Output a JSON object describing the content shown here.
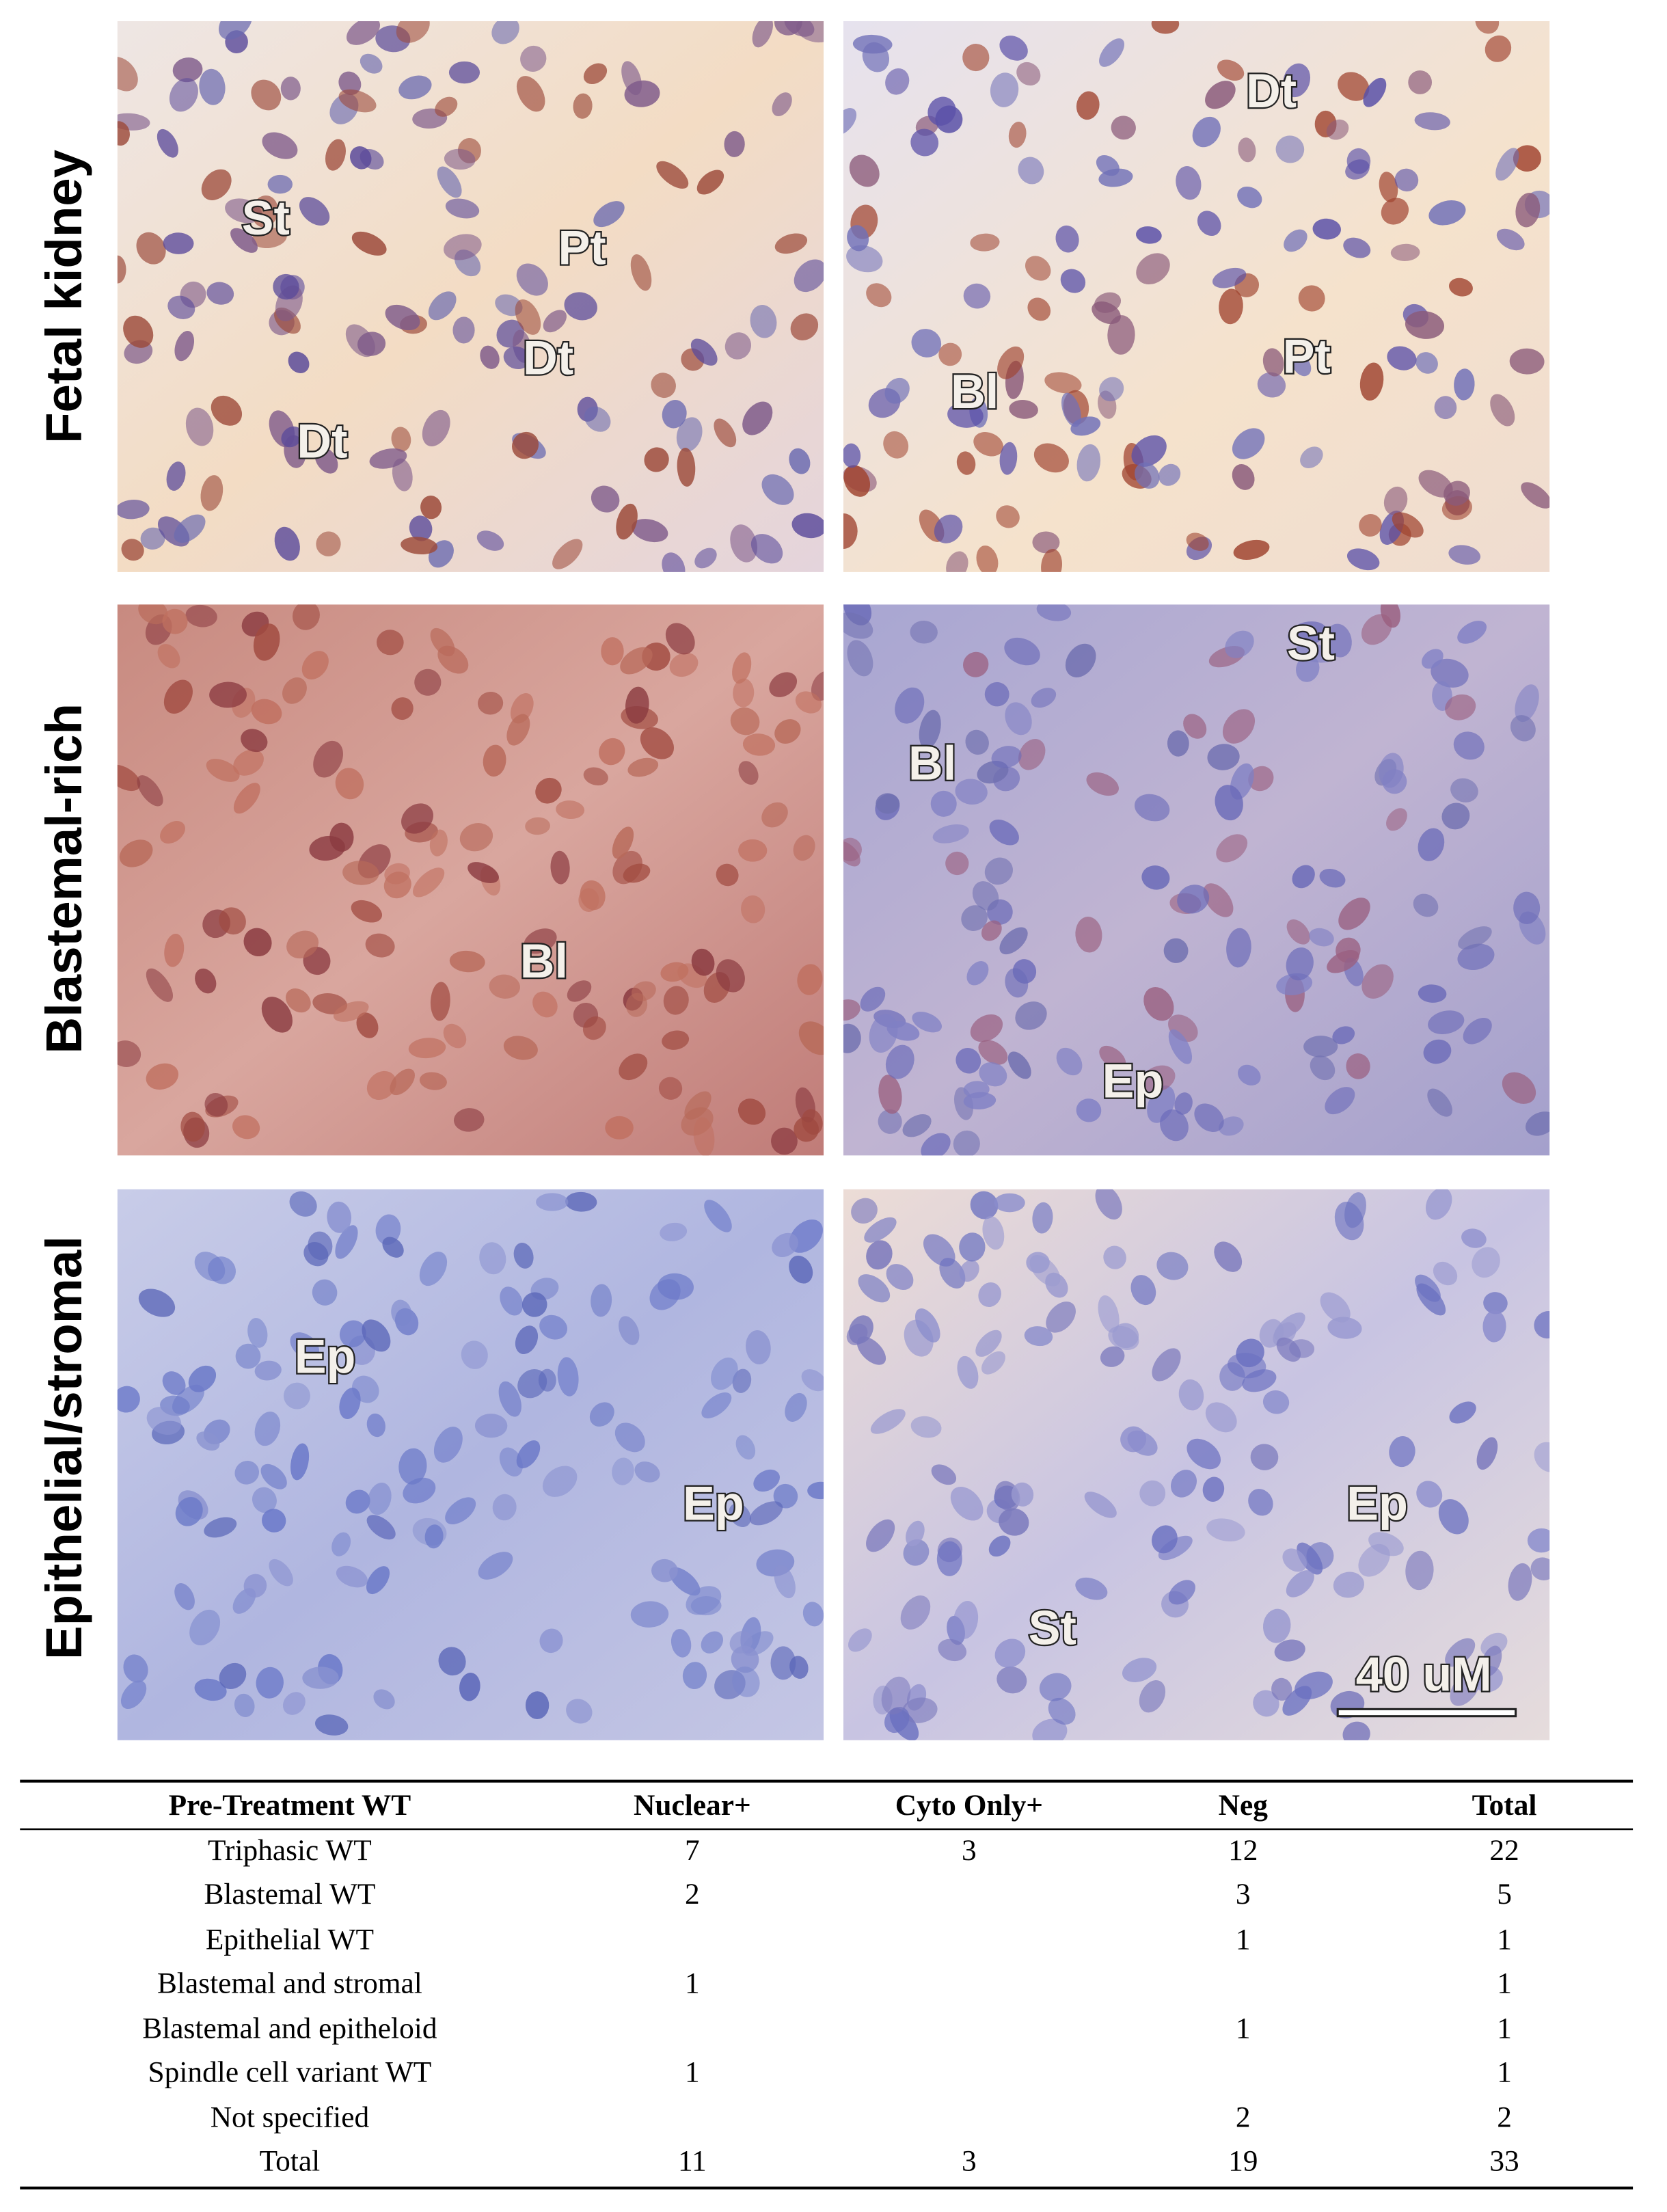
{
  "row_labels": [
    "Fetal kidney",
    "Blastemal-rich",
    "Epithelial/stromal"
  ],
  "panels": [
    {
      "labels": [
        "St",
        "Pt",
        "Dt",
        "Dt"
      ]
    },
    {
      "labels": [
        "Dt",
        "Bl",
        "Pt"
      ]
    },
    {
      "labels": [
        "Bl"
      ]
    },
    {
      "labels": [
        "St",
        "Bl",
        "Ep"
      ]
    },
    {
      "labels": [
        "Ep",
        "Ep"
      ]
    },
    {
      "labels": [
        "Ep",
        "St"
      ]
    }
  ],
  "scale_bar": "40 uM",
  "table": {
    "header": [
      "Pre-Treatment WT",
      "Nuclear+",
      "Cyto Only+",
      "Neg",
      "Total"
    ],
    "rows": [
      [
        "Triphasic WT",
        7,
        3,
        12,
        22
      ],
      [
        "Blastemal WT",
        2,
        null,
        3,
        5
      ],
      [
        "Epithelial WT",
        null,
        null,
        1,
        1
      ],
      [
        "Blastemal and stromal",
        1,
        null,
        null,
        1
      ],
      [
        "Blastemal and epitheloid",
        null,
        null,
        1,
        1
      ],
      [
        "Spindle cell variant WT",
        1,
        null,
        null,
        1
      ],
      [
        "Not specified",
        null,
        null,
        2,
        2
      ],
      [
        "Total",
        11,
        3,
        19,
        33
      ]
    ]
  }
}
